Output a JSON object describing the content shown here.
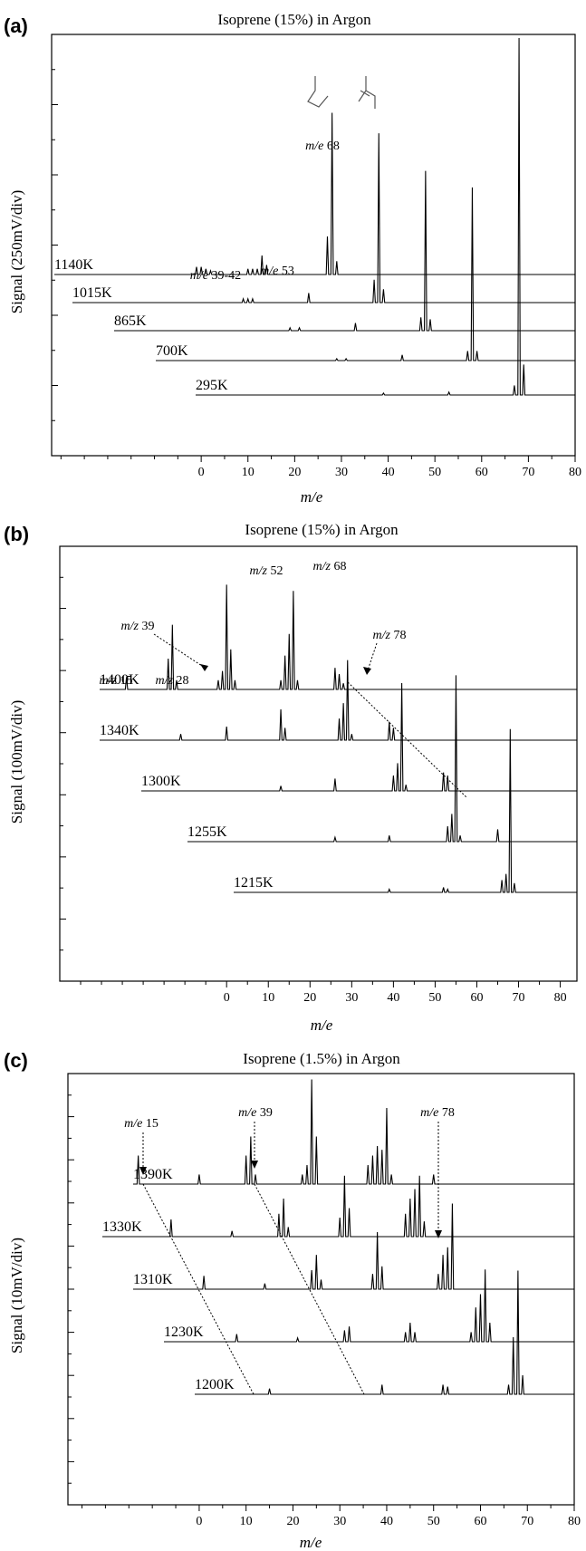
{
  "chart_data": [
    {
      "panel_label": "(a)",
      "type": "line",
      "title": "Isoprene (15%) in Argon",
      "xlabel": "m/e",
      "ylabel": "Signal (250mV/div)",
      "x_ticks": [
        0,
        10,
        20,
        30,
        40,
        50,
        60,
        70,
        80
      ],
      "xlim": [
        -32,
        80
      ],
      "offset_per_trace_me": 10,
      "series": [
        {
          "name": "1140K",
          "peaks": [
            [
              39,
              0.04
            ],
            [
              40,
              0.04
            ],
            [
              41,
              0.03
            ],
            [
              42,
              0.02
            ],
            [
              50,
              0.03
            ],
            [
              51,
              0.03
            ],
            [
              52,
              0.03
            ],
            [
              53,
              0.1
            ],
            [
              54,
              0.05
            ],
            [
              67,
              0.2
            ],
            [
              68,
              0.85
            ],
            [
              69,
              0.07
            ]
          ]
        },
        {
          "name": "1015K",
          "peaks": [
            [
              39,
              0.02
            ],
            [
              40,
              0.02
            ],
            [
              41,
              0.02
            ],
            [
              53,
              0.05
            ],
            [
              67,
              0.12
            ],
            [
              68,
              0.89
            ],
            [
              69,
              0.07
            ]
          ]
        },
        {
          "name": "865K",
          "peaks": [
            [
              39,
              0.015
            ],
            [
              41,
              0.015
            ],
            [
              53,
              0.04
            ],
            [
              67,
              0.07
            ],
            [
              68,
              0.84
            ],
            [
              69,
              0.06
            ]
          ]
        },
        {
          "name": "700K",
          "peaks": [
            [
              39,
              0.01
            ],
            [
              41,
              0.01
            ],
            [
              53,
              0.03
            ],
            [
              67,
              0.05
            ],
            [
              68,
              0.91
            ],
            [
              69,
              0.05
            ]
          ]
        },
        {
          "name": "295K",
          "peaks": [
            [
              39,
              0.01
            ],
            [
              53,
              0.015
            ],
            [
              67,
              0.05
            ],
            [
              68,
              2.3
            ],
            [
              69,
              0.16
            ]
          ]
        }
      ],
      "annotations": [
        {
          "text": "m/e 68",
          "italic": "m/e",
          "rest": " 68"
        },
        {
          "text": "m/e 39-42",
          "italic": "m/e",
          "rest": " 39-42"
        },
        {
          "text": "m/e 53",
          "italic": "m/e",
          "rest": " 53"
        }
      ]
    },
    {
      "panel_label": "(b)",
      "type": "line",
      "title": "Isoprene (15%) in Argon",
      "xlabel": "m/e",
      "ylabel": "Signal (100mV/div)",
      "x_ticks": [
        0,
        10,
        20,
        30,
        40,
        50,
        60,
        70,
        80
      ],
      "xlim": [
        -40,
        84
      ],
      "offset_per_trace_me": 13,
      "series": [
        {
          "name": "1400K",
          "peaks": [
            [
              15,
              0.2
            ],
            [
              28,
              0.2
            ],
            [
              38,
              0.5
            ],
            [
              39,
              1.05
            ],
            [
              40,
              0.15
            ],
            [
              50,
              0.15
            ],
            [
              51,
              0.3
            ],
            [
              52,
              1.7
            ],
            [
              53,
              0.65
            ],
            [
              54,
              0.15
            ],
            [
              65,
              0.15
            ],
            [
              66,
              0.55
            ],
            [
              67,
              0.9
            ],
            [
              68,
              1.6
            ],
            [
              69,
              0.15
            ],
            [
              78,
              0.35
            ],
            [
              79,
              0.25
            ],
            [
              80,
              0.1
            ]
          ]
        },
        {
          "name": "1340K",
          "peaks": [
            [
              28,
              0.1
            ],
            [
              39,
              0.22
            ],
            [
              52,
              0.5
            ],
            [
              53,
              0.2
            ],
            [
              66,
              0.35
            ],
            [
              67,
              0.6
            ],
            [
              68,
              1.3
            ],
            [
              69,
              0.1
            ],
            [
              78,
              0.3
            ],
            [
              79,
              0.2
            ]
          ]
        },
        {
          "name": "1300K",
          "peaks": [
            [
              39,
              0.08
            ],
            [
              52,
              0.2
            ],
            [
              66,
              0.25
            ],
            [
              67,
              0.45
            ],
            [
              68,
              1.75
            ],
            [
              69,
              0.1
            ],
            [
              78,
              0.3
            ],
            [
              79,
              0.25
            ]
          ]
        },
        {
          "name": "1255K",
          "peaks": [
            [
              39,
              0.07
            ],
            [
              52,
              0.1
            ],
            [
              66,
              0.25
            ],
            [
              67,
              0.45
            ],
            [
              68,
              2.7
            ],
            [
              69,
              0.1
            ],
            [
              78,
              0.2
            ]
          ]
        },
        {
          "name": "1215K",
          "peaks": [
            [
              39,
              0.05
            ],
            [
              52,
              0.08
            ],
            [
              53,
              0.05
            ],
            [
              66,
              0.2
            ],
            [
              67,
              0.3
            ],
            [
              68,
              2.65
            ],
            [
              69,
              0.15
            ]
          ]
        }
      ],
      "annotations": [
        {
          "text": "m/z 15",
          "italic": "m/z",
          "rest": " 15"
        },
        {
          "text": "m/z 28",
          "italic": "m/z",
          "rest": " 28"
        },
        {
          "text": "m/z 39",
          "italic": "m/z",
          "rest": " 39"
        },
        {
          "text": "m/z 52",
          "italic": "m/z",
          "rest": " 52"
        },
        {
          "text": "m/z 68",
          "italic": "m/z",
          "rest": " 68"
        },
        {
          "text": "m/z 78",
          "italic": "m/z",
          "rest": " 78"
        }
      ]
    },
    {
      "panel_label": "(c)",
      "type": "line",
      "title": "Isoprene (1.5%) in Argon",
      "xlabel": "m/e",
      "ylabel": "Signal (10mV/div)",
      "x_ticks": [
        0,
        10,
        20,
        30,
        40,
        50,
        60,
        70,
        80
      ],
      "xlim": [
        -28,
        80
      ],
      "offset_per_trace_me": 7,
      "series": [
        {
          "name": "1390K",
          "peaks": [
            [
              15,
              0.15
            ],
            [
              28,
              0.05
            ],
            [
              38,
              0.15
            ],
            [
              39,
              0.25
            ],
            [
              40,
              0.05
            ],
            [
              50,
              0.05
            ],
            [
              51,
              0.1
            ],
            [
              52,
              0.55
            ],
            [
              53,
              0.25
            ],
            [
              64,
              0.1
            ],
            [
              65,
              0.15
            ],
            [
              66,
              0.2
            ],
            [
              67,
              0.18
            ],
            [
              68,
              0.4
            ],
            [
              69,
              0.05
            ],
            [
              78,
              0.05
            ]
          ]
        },
        {
          "name": "1330K",
          "peaks": [
            [
              15,
              0.09
            ],
            [
              28,
              0.03
            ],
            [
              38,
              0.12
            ],
            [
              39,
              0.2
            ],
            [
              40,
              0.05
            ],
            [
              51,
              0.1
            ],
            [
              52,
              0.32
            ],
            [
              53,
              0.15
            ],
            [
              65,
              0.12
            ],
            [
              66,
              0.2
            ],
            [
              67,
              0.25
            ],
            [
              68,
              0.32
            ],
            [
              69,
              0.08
            ]
          ]
        },
        {
          "name": "1310K",
          "peaks": [
            [
              15,
              0.07
            ],
            [
              28,
              0.03
            ],
            [
              38,
              0.1
            ],
            [
              39,
              0.18
            ],
            [
              40,
              0.05
            ],
            [
              51,
              0.08
            ],
            [
              52,
              0.3
            ],
            [
              53,
              0.12
            ],
            [
              65,
              0.08
            ],
            [
              66,
              0.18
            ],
            [
              67,
              0.22
            ],
            [
              68,
              0.45
            ]
          ]
        },
        {
          "name": "1230K",
          "peaks": [
            [
              15,
              0.04
            ],
            [
              28,
              0.02
            ],
            [
              38,
              0.06
            ],
            [
              39,
              0.08
            ],
            [
              51,
              0.05
            ],
            [
              52,
              0.1
            ],
            [
              53,
              0.05
            ],
            [
              65,
              0.05
            ],
            [
              66,
              0.18
            ],
            [
              67,
              0.25
            ],
            [
              68,
              0.38
            ],
            [
              69,
              0.1
            ]
          ]
        },
        {
          "name": "1200K",
          "peaks": [
            [
              15,
              0.03
            ],
            [
              39,
              0.05
            ],
            [
              52,
              0.05
            ],
            [
              53,
              0.04
            ],
            [
              66,
              0.05
            ],
            [
              67,
              0.3
            ],
            [
              68,
              0.65
            ],
            [
              69,
              0.1
            ]
          ]
        }
      ],
      "annotations": [
        {
          "text": "m/e 15",
          "italic": "m/e",
          "rest": " 15"
        },
        {
          "text": "m/e 39",
          "italic": "m/e",
          "rest": " 39"
        },
        {
          "text": "m/e 78",
          "italic": "m/e",
          "rest": " 78"
        }
      ]
    }
  ]
}
